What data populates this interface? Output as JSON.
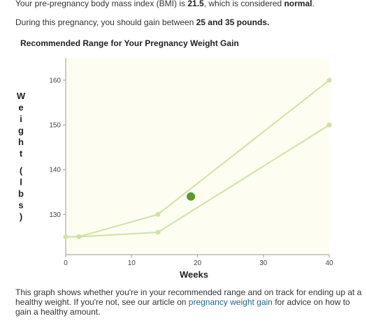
{
  "intro": {
    "bmi_prefix": "Your pre-pregnancy body mass index (BMI) is ",
    "bmi_value": "21.5",
    "bmi_middle": ", which is considered ",
    "bmi_category": "normal",
    "bmi_suffix": ".",
    "gain_prefix": "During this pregnancy, you should gain between ",
    "gain_range": "25 and 35 pounds."
  },
  "chart_title": "Recommended Range for Your Pregnancy Weight Gain",
  "chart_data": {
    "type": "line",
    "title": "Recommended Range for Your Pregnancy Weight Gain",
    "xlabel": "Weeks",
    "ylabel": "Weight (lbs)",
    "xlim": [
      0,
      40
    ],
    "ylim": [
      121,
      165
    ],
    "x_ticks": [
      0,
      10,
      20,
      30,
      40
    ],
    "y_ticks": [
      130,
      140,
      150,
      160
    ],
    "series": [
      {
        "x": [
          0,
          2,
          14,
          40
        ],
        "y": [
          125,
          125,
          130,
          160
        ],
        "color": "#cfe3a6"
      },
      {
        "x": [
          0,
          2,
          14,
          40
        ],
        "y": [
          125,
          125,
          126,
          150
        ],
        "color": "#cfe3a6"
      }
    ],
    "marker": {
      "x": 19,
      "y": 134,
      "color": "#5a9a2e"
    },
    "plot_background": "#fdfdf1",
    "grid": false,
    "legend": "none"
  },
  "footer": {
    "text_before": "This graph shows whether you're in your recommended range and on track for ending up at a healthy weight. If you're not, see our article on ",
    "link_text": "pregnancy weight gain",
    "text_after": " for advice on how to gain a healthy amount."
  }
}
